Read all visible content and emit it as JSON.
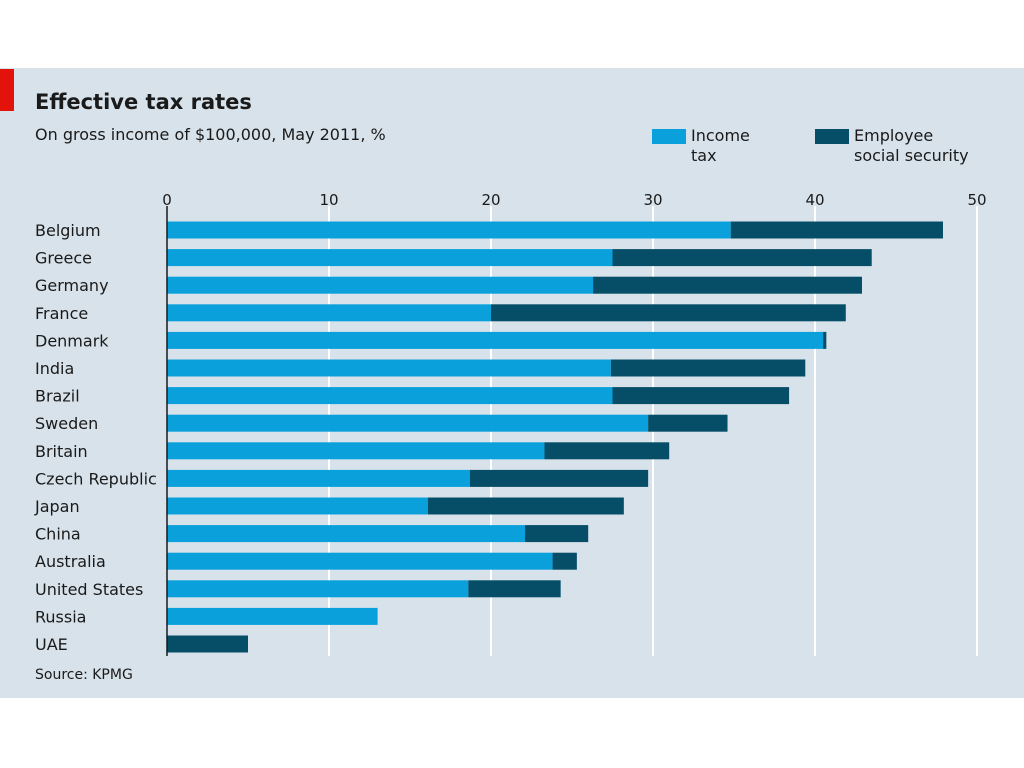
{
  "header": {
    "title": "Effective tax rates",
    "subtitle": "On gross income of $100,000, May 2011, %"
  },
  "legend": {
    "income_tax": "Income\ntax",
    "social_security": "Employee\nsocial security"
  },
  "source": "Source: KPMG",
  "colors": {
    "income_tax": "#0aa0dc",
    "social_security": "#064e67",
    "background": "#d7e2ea",
    "accent": "#e3120b"
  },
  "chart_data": {
    "type": "bar",
    "orientation": "horizontal",
    "stacked": true,
    "categories": [
      "Belgium",
      "Greece",
      "Germany",
      "France",
      "Denmark",
      "India",
      "Brazil",
      "Sweden",
      "Britain",
      "Czech Republic",
      "Japan",
      "China",
      "Australia",
      "United States",
      "Russia",
      "UAE"
    ],
    "series": [
      {
        "name": "Income tax",
        "values": [
          34.8,
          27.5,
          26.3,
          20.0,
          40.5,
          27.4,
          27.5,
          29.7,
          23.3,
          18.7,
          16.1,
          22.1,
          23.8,
          18.6,
          13.0,
          0.0
        ]
      },
      {
        "name": "Employee social security",
        "values": [
          13.1,
          16.0,
          16.6,
          21.9,
          0.2,
          12.0,
          10.9,
          4.9,
          7.7,
          11.0,
          12.1,
          3.9,
          1.5,
          5.7,
          0.0,
          5.0
        ]
      }
    ],
    "xlim": [
      0,
      50
    ],
    "xticks": [
      "0",
      "10",
      "20",
      "30",
      "40",
      "50"
    ],
    "xaxis_position": "top",
    "grid": true,
    "legend_position": "top-right"
  }
}
